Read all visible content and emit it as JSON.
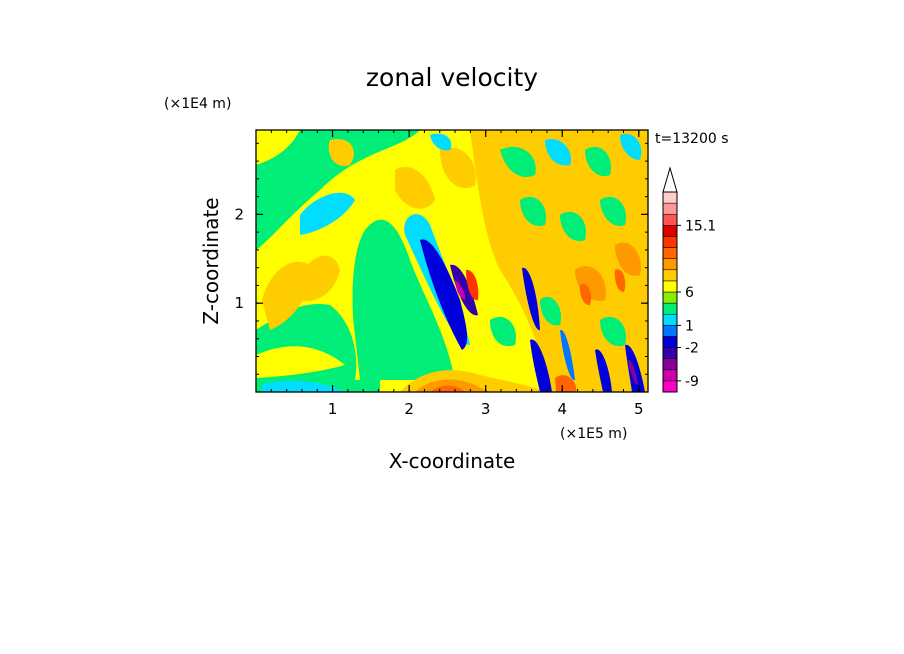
{
  "chart_data": {
    "type": "heatmap",
    "title": "zonal velocity",
    "xlabel": "X-coordinate",
    "ylabel": "Z-coordinate",
    "x_unit_label": "(×1E5 m)",
    "y_unit_label": "(×1E4 m)",
    "time_label": "t=13200 s",
    "xlim": [
      0,
      5.12
    ],
    "ylim": [
      0,
      2.95
    ],
    "x_ticks": [
      {
        "value": 1,
        "label": "1"
      },
      {
        "value": 2,
        "label": "2"
      },
      {
        "value": 3,
        "label": "3"
      },
      {
        "value": 4,
        "label": "4"
      },
      {
        "value": 5,
        "label": "5"
      }
    ],
    "y_ticks": [
      {
        "value": 1,
        "label": "1"
      },
      {
        "value": 2,
        "label": "2"
      }
    ],
    "colorbar": {
      "colors": [
        "#ff00cc",
        "#cc00aa",
        "#880099",
        "#3300aa",
        "#0000dd",
        "#0077ff",
        "#00ddff",
        "#00ee77",
        "#88ee00",
        "#ffff00",
        "#ffcc00",
        "#ff9900",
        "#ff6600",
        "#ff3300",
        "#dd0000",
        "#ff5555",
        "#ff9999",
        "#ffcccc"
      ],
      "arrow_top": true,
      "labels": [
        {
          "level": 1,
          "text": "-9"
        },
        {
          "level": 4,
          "text": "-2"
        },
        {
          "level": 6,
          "text": "1"
        },
        {
          "level": 9,
          "text": "6"
        },
        {
          "level": 15,
          "text": "15.1"
        }
      ]
    },
    "grid": false
  }
}
